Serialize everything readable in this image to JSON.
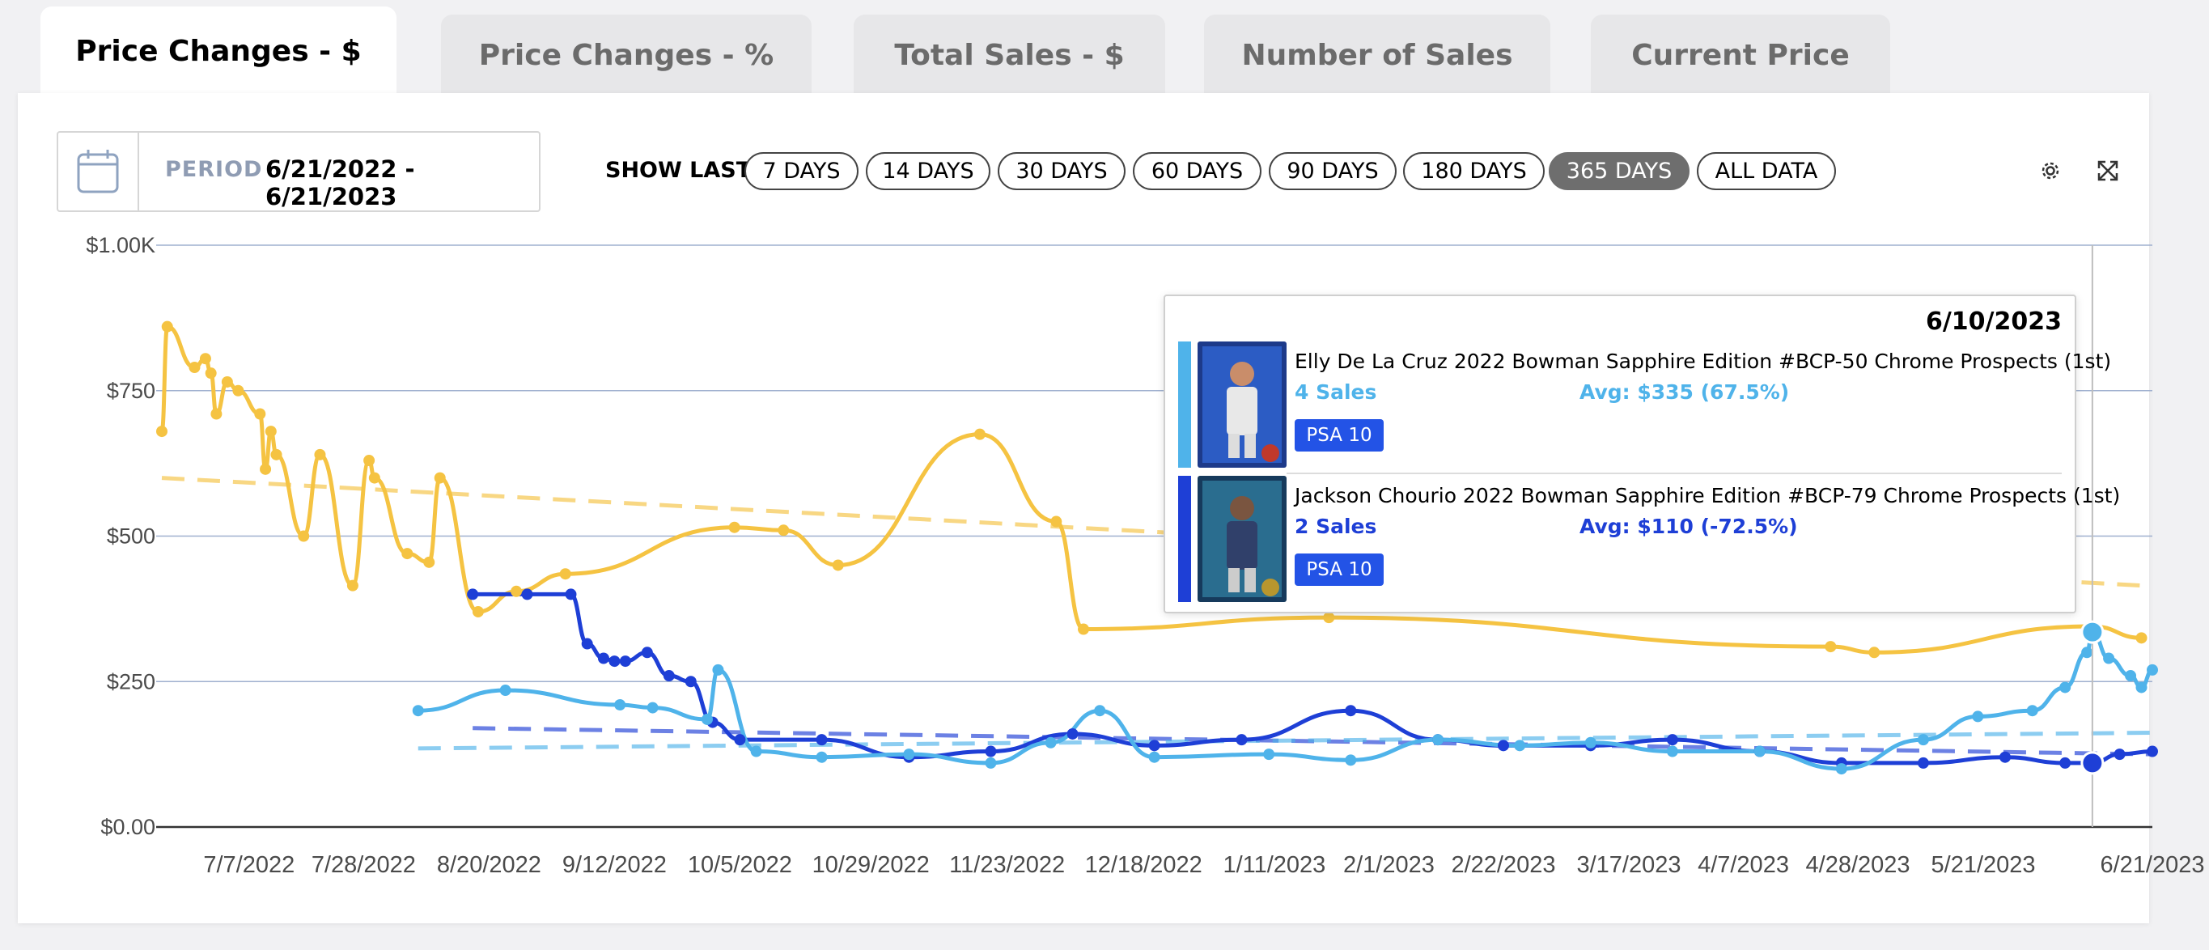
{
  "tabs": [
    {
      "label": "Price Changes - $",
      "active": true
    },
    {
      "label": "Price Changes - %",
      "active": false
    },
    {
      "label": "Total Sales - $",
      "active": false
    },
    {
      "label": "Number of Sales",
      "active": false
    },
    {
      "label": "Current Price",
      "active": false
    }
  ],
  "period": {
    "label": "PERIOD",
    "value": "6/21/2022 - 6/21/2023",
    "icon": "calendar-icon"
  },
  "show_last": {
    "label": "SHOW LAST",
    "options": [
      "7 DAYS",
      "14 DAYS",
      "30 DAYS",
      "60 DAYS",
      "90 DAYS",
      "180 DAYS",
      "365 DAYS",
      "ALL DATA"
    ],
    "selected": "365 DAYS"
  },
  "toolbar": {
    "settings_icon": "gear-icon",
    "expand_icon": "expand-icon"
  },
  "tooltip": {
    "date": "6/10/2023",
    "items": [
      {
        "name": "Elly De La Cruz 2022 Bowman Sapphire Edition #BCP-50 Chrome Prospects (1st)",
        "sales": "4 Sales",
        "avg": "Avg: $335 (67.5%)",
        "grade": "PSA 10",
        "color": "#4fb3ea"
      },
      {
        "name": "Jackson Chourio 2022 Bowman Sapphire Edition #BCP-79 Chrome Prospects (1st)",
        "sales": "2 Sales",
        "avg": "Avg: $110 (-72.5%)",
        "grade": "PSA 10",
        "color": "#1e3fd6"
      }
    ]
  },
  "chart_data": {
    "type": "line",
    "y_ticks": [
      "$1.00K",
      "$750",
      "$500",
      "$250",
      "$0.00"
    ],
    "ylim": [
      0,
      1000
    ],
    "x_ticks": [
      "7/7/2022",
      "7/28/2022",
      "8/20/2022",
      "9/12/2022",
      "10/5/2022",
      "10/29/2022",
      "11/23/2022",
      "12/18/2022",
      "1/11/2023",
      "2/1/2023",
      "2/22/2023",
      "3/17/2023",
      "4/7/2023",
      "4/28/2023",
      "5/21/2023",
      "6/21/2023"
    ],
    "grid": true,
    "series": [
      {
        "color": "#f5c342",
        "trend": [
          600,
          415
        ],
        "points": [
          [
            "6/21/2022",
            680
          ],
          [
            "6/22/2022",
            860
          ],
          [
            "6/27/2022",
            790
          ],
          [
            "6/29/2022",
            805
          ],
          [
            "6/30/2022",
            780
          ],
          [
            "7/1/2022",
            710
          ],
          [
            "7/3/2022",
            765
          ],
          [
            "7/5/2022",
            750
          ],
          [
            "7/9/2022",
            710
          ],
          [
            "7/10/2022",
            615
          ],
          [
            "7/11/2022",
            680
          ],
          [
            "7/12/2022",
            640
          ],
          [
            "7/17/2022",
            500
          ],
          [
            "7/20/2022",
            640
          ],
          [
            "7/26/2022",
            415
          ],
          [
            "7/29/2022",
            630
          ],
          [
            "7/30/2022",
            600
          ],
          [
            "8/5/2022",
            470
          ],
          [
            "8/9/2022",
            455
          ],
          [
            "8/11/2022",
            600
          ],
          [
            "8/18/2022",
            370
          ],
          [
            "8/25/2022",
            405
          ],
          [
            "9/3/2022",
            435
          ],
          [
            "10/4/2022",
            515
          ],
          [
            "10/13/2022",
            510
          ],
          [
            "10/23/2022",
            450
          ],
          [
            "11/18/2022",
            675
          ],
          [
            "12/2/2022",
            525
          ],
          [
            "12/7/2022",
            340
          ],
          [
            "1/21/2023",
            360
          ],
          [
            "4/23/2023",
            310
          ],
          [
            "5/1/2023",
            300
          ],
          [
            "6/10/2023",
            345
          ],
          [
            "6/19/2023",
            325
          ]
        ]
      },
      {
        "color": "#1e3fd6",
        "trend": [
          170,
          125
        ],
        "points": [
          [
            "8/17/2022",
            400
          ],
          [
            "8/27/2022",
            400
          ],
          [
            "9/4/2022",
            400
          ],
          [
            "9/7/2022",
            315
          ],
          [
            "9/10/2022",
            290
          ],
          [
            "9/12/2022",
            285
          ],
          [
            "9/14/2022",
            285
          ],
          [
            "9/18/2022",
            300
          ],
          [
            "9/22/2022",
            260
          ],
          [
            "9/26/2022",
            250
          ],
          [
            "9/30/2022",
            180
          ],
          [
            "10/5/2022",
            150
          ],
          [
            "10/20/2022",
            150
          ],
          [
            "11/5/2022",
            120
          ],
          [
            "11/20/2022",
            130
          ],
          [
            "12/5/2022",
            160
          ],
          [
            "12/20/2022",
            140
          ],
          [
            "1/5/2023",
            150
          ],
          [
            "1/25/2023",
            200
          ],
          [
            "2/10/2023",
            150
          ],
          [
            "2/22/2023",
            140
          ],
          [
            "3/10/2023",
            140
          ],
          [
            "3/25/2023",
            150
          ],
          [
            "4/10/2023",
            130
          ],
          [
            "4/25/2023",
            110
          ],
          [
            "5/10/2023",
            110
          ],
          [
            "5/25/2023",
            120
          ],
          [
            "6/5/2023",
            110
          ],
          [
            "6/10/2023",
            110
          ],
          [
            "6/15/2023",
            125
          ],
          [
            "6/21/2023",
            130
          ]
        ]
      },
      {
        "color": "#4fb3ea",
        "trend": [
          135,
          162
        ],
        "points": [
          [
            "8/7/2022",
            200
          ],
          [
            "8/23/2022",
            235
          ],
          [
            "9/13/2022",
            210
          ],
          [
            "9/19/2022",
            205
          ],
          [
            "9/29/2022",
            185
          ],
          [
            "10/1/2022",
            270
          ],
          [
            "10/8/2022",
            130
          ],
          [
            "10/20/2022",
            120
          ],
          [
            "11/5/2022",
            125
          ],
          [
            "11/20/2022",
            110
          ],
          [
            "12/1/2022",
            145
          ],
          [
            "12/10/2022",
            200
          ],
          [
            "12/20/2022",
            120
          ],
          [
            "1/10/2023",
            125
          ],
          [
            "1/25/2023",
            115
          ],
          [
            "2/10/2023",
            150
          ],
          [
            "2/25/2023",
            140
          ],
          [
            "3/10/2023",
            145
          ],
          [
            "3/25/2023",
            130
          ],
          [
            "4/10/2023",
            130
          ],
          [
            "4/25/2023",
            100
          ],
          [
            "5/10/2023",
            150
          ],
          [
            "5/20/2023",
            190
          ],
          [
            "5/30/2023",
            200
          ],
          [
            "6/5/2023",
            240
          ],
          [
            "6/9/2023",
            300
          ],
          [
            "6/10/2023",
            335
          ],
          [
            "6/13/2023",
            290
          ],
          [
            "6/17/2023",
            260
          ],
          [
            "6/19/2023",
            240
          ],
          [
            "6/21/2023",
            270
          ]
        ]
      }
    ]
  }
}
